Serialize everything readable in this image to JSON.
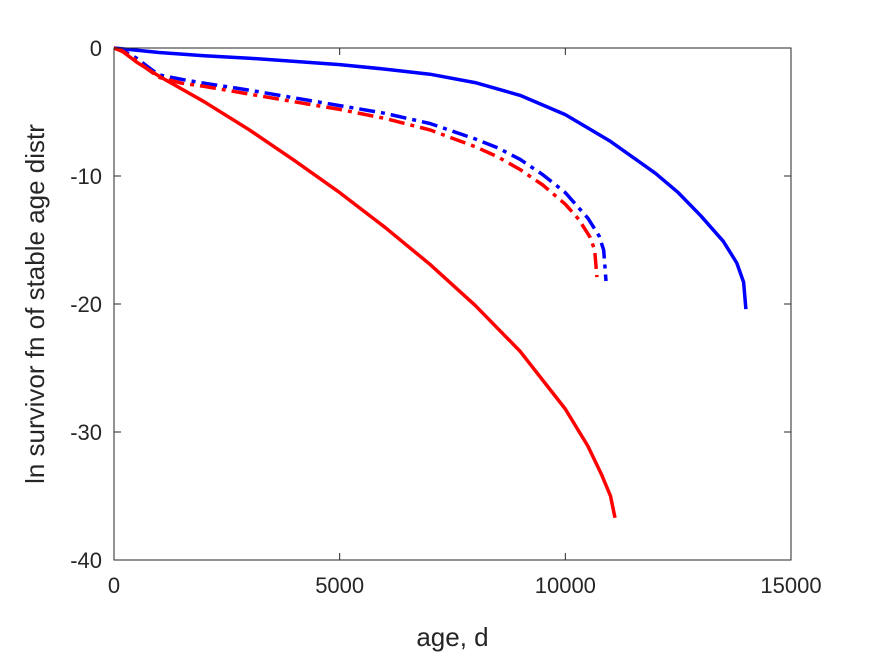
{
  "chart_data": {
    "type": "line",
    "title": "",
    "xlabel": "age, d",
    "ylabel": "ln survivor fn of stable age distr",
    "xlim": [
      0,
      15000
    ],
    "ylim": [
      -40,
      0
    ],
    "xticks": [
      0,
      5000,
      10000,
      15000
    ],
    "yticks": [
      0,
      -10,
      -20,
      -30,
      -40
    ],
    "xtick_labels": [
      "0",
      "5000",
      "10000",
      "15000"
    ],
    "ytick_labels": [
      "0",
      "-10",
      "-20",
      "-30",
      "-40"
    ],
    "grid": false,
    "series": [
      {
        "color": "#0000ff",
        "dash": "solid",
        "x": [
          0,
          1000,
          2000,
          3000,
          4000,
          5000,
          6000,
          7000,
          8000,
          9000,
          10000,
          11000,
          12000,
          12500,
          13000,
          13500,
          13800,
          13950,
          14000
        ],
        "y": [
          0,
          -0.35,
          -0.6,
          -0.8,
          -1.05,
          -1.3,
          -1.65,
          -2.05,
          -2.7,
          -3.7,
          -5.2,
          -7.3,
          -9.8,
          -11.3,
          -13.1,
          -15.1,
          -16.8,
          -18.3,
          -20.4
        ]
      },
      {
        "color": "#0000ff",
        "dash": "dashdot",
        "x": [
          0,
          200,
          500,
          800,
          1000,
          1500,
          2000,
          3000,
          4000,
          5000,
          6000,
          7000,
          8000,
          8500,
          9000,
          9500,
          10000,
          10500,
          10750,
          10850,
          10900
        ],
        "y": [
          0,
          -0.2,
          -0.8,
          -1.6,
          -2.1,
          -2.45,
          -2.75,
          -3.3,
          -3.9,
          -4.5,
          -5.1,
          -5.9,
          -7.1,
          -7.8,
          -8.7,
          -9.9,
          -11.3,
          -13.3,
          -14.7,
          -15.8,
          -18.2
        ]
      },
      {
        "color": "#ff0000",
        "dash": "dashdot",
        "x": [
          0,
          200,
          500,
          800,
          1000,
          1500,
          2000,
          3000,
          4000,
          5000,
          6000,
          7000,
          8000,
          8500,
          9000,
          9500,
          10000,
          10300,
          10550,
          10650,
          10700
        ],
        "y": [
          0,
          -0.25,
          -1.0,
          -1.8,
          -2.3,
          -2.75,
          -3.0,
          -3.6,
          -4.2,
          -4.8,
          -5.5,
          -6.4,
          -7.7,
          -8.5,
          -9.5,
          -10.7,
          -12.2,
          -13.4,
          -14.8,
          -15.8,
          -17.9
        ]
      },
      {
        "color": "#ff0000",
        "dash": "solid",
        "x": [
          0,
          200,
          500,
          1000,
          1500,
          2000,
          3000,
          4000,
          5000,
          6000,
          7000,
          8000,
          9000,
          10000,
          10500,
          10800,
          11000,
          11100
        ],
        "y": [
          0,
          -0.3,
          -1.1,
          -2.2,
          -3.2,
          -4.2,
          -6.4,
          -8.8,
          -11.3,
          -14.0,
          -16.9,
          -20.1,
          -23.7,
          -28.2,
          -31.1,
          -33.3,
          -35.0,
          -36.7
        ]
      }
    ]
  }
}
